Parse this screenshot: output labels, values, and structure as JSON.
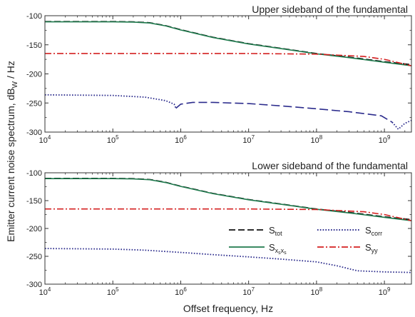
{
  "chart_data": [
    {
      "type": "line",
      "title": "Upper sideband of the fundamental",
      "x_scale": "log",
      "xlim": [
        10000,
        2500000000
      ],
      "ylim": [
        -300,
        -100
      ],
      "x_tick_values": [
        10000,
        100000,
        1000000,
        10000000,
        100000000,
        1000000000
      ],
      "x_ticks": [
        {
          "base": "10",
          "exp": "4"
        },
        {
          "base": "10",
          "exp": "5"
        },
        {
          "base": "10",
          "exp": "6"
        },
        {
          "base": "10",
          "exp": "7"
        },
        {
          "base": "10",
          "exp": "8"
        },
        {
          "base": "10",
          "exp": "9"
        }
      ],
      "y_ticks": [
        "-100",
        "-150",
        "-200",
        "-250",
        "-300"
      ],
      "y_tick_values": [
        -100,
        -150,
        -200,
        -250,
        -300
      ],
      "grid": false,
      "series": [
        {
          "key": "tot",
          "color": "#111111",
          "style": "dashed",
          "x": [
            10000,
            100000,
            200000,
            350000,
            600000,
            1000000,
            3000000,
            10000000,
            30000000,
            100000000,
            300000000,
            1000000000,
            2500000000
          ],
          "y": [
            -110,
            -110,
            -110.5,
            -112,
            -117,
            -124,
            -137,
            -148,
            -156,
            -165,
            -171,
            -179,
            -184
          ]
        },
        {
          "key": "xsxs",
          "color": "#1f7a4d",
          "style": "solid",
          "x": [
            10000,
            100000,
            200000,
            350000,
            600000,
            1000000,
            3000000,
            10000000,
            30000000,
            100000000,
            300000000,
            1000000000,
            2500000000
          ],
          "y": [
            -110.5,
            -110.5,
            -111,
            -112.5,
            -117.5,
            -124.5,
            -137.5,
            -148.5,
            -156.5,
            -165.5,
            -172,
            -180,
            -186
          ]
        },
        {
          "key": "yy",
          "color": "#d42020",
          "style": "dashdot",
          "x": [
            10000,
            10000000,
            100000000,
            500000000,
            1000000000,
            2500000000
          ],
          "y": [
            -165,
            -165,
            -166,
            -170,
            -175,
            -186
          ]
        },
        {
          "key": "corr",
          "color": "#2b2b8c",
          "style": "dotted",
          "x": [
            10000,
            100000,
            300000,
            600000,
            800000,
            850000
          ],
          "y": [
            -236,
            -237,
            -240,
            -246,
            -252,
            -259
          ]
        },
        {
          "key": "corr2",
          "color": "#2b2b8c",
          "style": "longdash",
          "x": [
            850000,
            1000000,
            1500000,
            3000000,
            10000000,
            30000000,
            100000000,
            300000000,
            900000000,
            1300000000
          ],
          "y": [
            -259,
            -252,
            -249,
            -249,
            -251,
            -255,
            -260,
            -265,
            -272,
            -283
          ]
        },
        {
          "key": "corr3",
          "color": "#2b2b8c",
          "style": "dotted",
          "x": [
            1300000000,
            1600000000,
            2000000000,
            2500000000
          ],
          "y": [
            -283,
            -295,
            -285,
            -280
          ]
        }
      ]
    },
    {
      "type": "line",
      "title": "Lower sideband of the fundamental",
      "x_scale": "log",
      "xlim": [
        10000,
        2500000000
      ],
      "ylim": [
        -300,
        -100
      ],
      "x_tick_values": [
        10000,
        100000,
        1000000,
        10000000,
        100000000,
        1000000000
      ],
      "x_ticks": [
        {
          "base": "10",
          "exp": "4"
        },
        {
          "base": "10",
          "exp": "5"
        },
        {
          "base": "10",
          "exp": "6"
        },
        {
          "base": "10",
          "exp": "7"
        },
        {
          "base": "10",
          "exp": "8"
        },
        {
          "base": "10",
          "exp": "9"
        }
      ],
      "y_ticks": [
        "-100",
        "-150",
        "-200",
        "-250",
        "-300"
      ],
      "y_tick_values": [
        -100,
        -150,
        -200,
        -250,
        -300
      ],
      "grid": false,
      "legend_position": "right",
      "legend": [
        {
          "key": "tot",
          "color": "#111111",
          "style": "dashed",
          "main": "S",
          "sub": "tot",
          "subsub": ""
        },
        {
          "key": "corr",
          "color": "#2b2b8c",
          "style": "dotted",
          "main": "S",
          "sub": "corr",
          "subsub": ""
        },
        {
          "key": "xsxs",
          "color": "#1f7a4d",
          "style": "solid",
          "main": "S",
          "sub": "x",
          "subsub": "s"
        },
        {
          "key": "yy",
          "color": "#d42020",
          "style": "dashdot",
          "main": "S",
          "sub": "yy",
          "subsub": ""
        }
      ],
      "series": [
        {
          "key": "tot",
          "color": "#111111",
          "style": "dashed",
          "x": [
            10000,
            100000,
            200000,
            350000,
            600000,
            1000000,
            3000000,
            10000000,
            30000000,
            100000000,
            300000000,
            1000000000,
            2500000000
          ],
          "y": [
            -110,
            -110,
            -110.5,
            -112,
            -117,
            -124,
            -137,
            -148,
            -156,
            -165,
            -171,
            -179,
            -184
          ]
        },
        {
          "key": "xsxs",
          "color": "#1f7a4d",
          "style": "solid",
          "x": [
            10000,
            100000,
            200000,
            350000,
            600000,
            1000000,
            3000000,
            10000000,
            30000000,
            100000000,
            300000000,
            1000000000,
            2500000000
          ],
          "y": [
            -110.5,
            -110.5,
            -111,
            -112.5,
            -117.5,
            -124.5,
            -137.5,
            -148.5,
            -156.5,
            -165.5,
            -172,
            -180,
            -186
          ]
        },
        {
          "key": "yy",
          "color": "#d42020",
          "style": "dashdot",
          "x": [
            10000,
            10000000,
            100000000,
            500000000,
            1000000000,
            2500000000
          ],
          "y": [
            -165,
            -165,
            -166,
            -170,
            -175,
            -186
          ]
        },
        {
          "key": "corr",
          "color": "#2b2b8c",
          "style": "dotted",
          "x": [
            10000,
            100000,
            300000,
            1000000,
            3000000,
            10000000,
            30000000,
            100000000,
            200000000,
            400000000,
            1000000000,
            2500000000
          ],
          "y": [
            -236,
            -237,
            -239,
            -243,
            -247,
            -251,
            -255,
            -260,
            -267,
            -276,
            -278,
            -279
          ]
        }
      ]
    }
  ],
  "shared": {
    "ylabel_main": "Emitter current noise spectrum, dB",
    "ylabel_sub": "W",
    "ylabel_tail": " / Hz",
    "xlabel": "Offset frequency, Hz"
  }
}
